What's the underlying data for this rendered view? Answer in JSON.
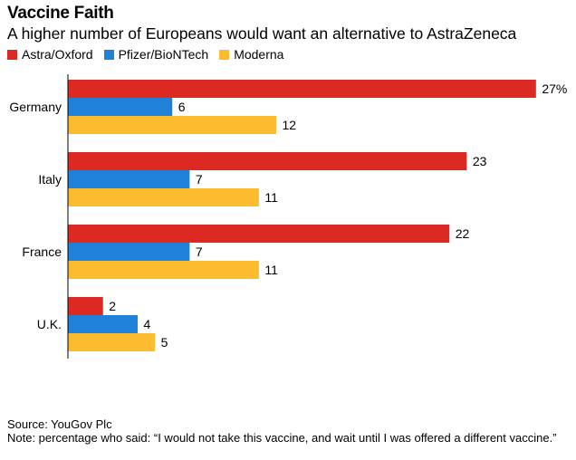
{
  "header": {
    "title": "Vaccine Faith",
    "subtitle": "A higher number of Europeans would want an alternative to AstraZeneca"
  },
  "legend": [
    {
      "label": "Astra/Oxford",
      "color": "#dc2a23"
    },
    {
      "label": "Pfizer/BioNTech",
      "color": "#1f82d8"
    },
    {
      "label": "Moderna",
      "color": "#fdbb30"
    }
  ],
  "footer": {
    "source": "Source: YouGov Plc",
    "note": "Note: percentage who said: “I would not take this vaccine, and wait until I was offered a different vaccine.”"
  },
  "chart_data": {
    "type": "bar",
    "orientation": "horizontal",
    "title": "Vaccine Faith",
    "subtitle": "A higher number of Europeans would want an alternative to AstraZeneca",
    "unit": "%",
    "categories": [
      "Germany",
      "Italy",
      "France",
      "U.K."
    ],
    "series": [
      {
        "name": "Astra/Oxford",
        "color": "#dc2a23",
        "values": [
          27,
          23,
          22,
          2
        ],
        "labels": [
          "27%",
          "23",
          "22",
          "2"
        ]
      },
      {
        "name": "Pfizer/BioNTech",
        "color": "#1f82d8",
        "values": [
          6,
          7,
          7,
          4
        ],
        "labels": [
          "6",
          "7",
          "7",
          "4"
        ]
      },
      {
        "name": "Moderna",
        "color": "#fdbb30",
        "values": [
          12,
          11,
          11,
          5
        ],
        "labels": [
          "12",
          "11",
          "11",
          "5"
        ]
      }
    ],
    "xlim": [
      0,
      28.5
    ],
    "grid": false,
    "legend_position": "top-left"
  }
}
